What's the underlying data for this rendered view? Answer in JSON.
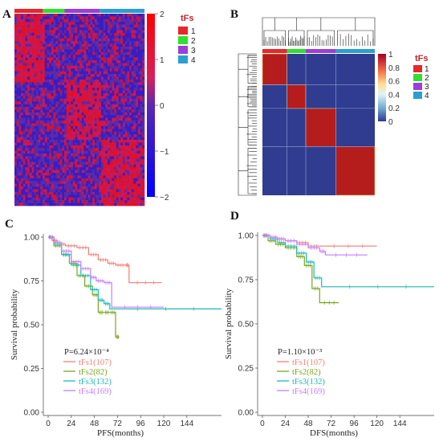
{
  "figure": {
    "panels": {
      "A": "A",
      "B": "B",
      "C": "C",
      "D": "D"
    },
    "groups": [
      {
        "label": "1",
        "color": "#e8272a",
        "weight": 107
      },
      {
        "label": "2",
        "color": "#2fe02f",
        "weight": 82
      },
      {
        "label": "3",
        "color": "#9b3fd6",
        "weight": 132
      },
      {
        "label": "4",
        "color": "#2a9fd2",
        "weight": 169
      }
    ],
    "legend_title": "tFs"
  },
  "chart_data": [
    {
      "panel": "A",
      "type": "heatmap",
      "colorbar": {
        "ticks": [
          "2",
          "1",
          "0",
          "−1",
          "−2"
        ],
        "tick_values": [
          2,
          1,
          0,
          -1,
          -2
        ],
        "colors": [
          "#0000ff",
          "#6a5acd",
          "#ffffff",
          "#ff0000"
        ]
      },
      "legend": {
        "title": "tFs",
        "entries": [
          "1",
          "2",
          "3",
          "4"
        ]
      }
    },
    {
      "panel": "B",
      "type": "heatmap",
      "colorbar": {
        "ticks": [
          "1",
          "0.8",
          "0.6",
          "0.4",
          "0.2",
          "0"
        ],
        "tick_values": [
          1,
          0.8,
          0.6,
          0.4,
          0.2,
          0
        ]
      },
      "legend": {
        "title": "tFs",
        "entries": [
          "1",
          "2",
          "3",
          "4"
        ]
      }
    },
    {
      "panel": "C",
      "type": "line",
      "xlabel": "PFS(months)",
      "ylabel": "Survival probability",
      "xlim": [
        -5,
        180
      ],
      "ylim": [
        0,
        1.0
      ],
      "xticks": [
        0,
        24,
        48,
        72,
        96,
        120,
        144
      ],
      "xtick_labels": [
        "0",
        "24",
        "48",
        "72",
        "96",
        "120",
        "144"
      ],
      "yticks": [
        0,
        0.25,
        0.5,
        0.75,
        1.0
      ],
      "ytick_labels": [
        "0.00",
        "0.25",
        "0.50",
        "0.75",
        "1.00"
      ],
      "pvalue": "P=6.24×10⁻⁴",
      "series": [
        {
          "name": "tFs1(107)",
          "color": "#f07f75",
          "x": [
            0,
            4,
            10,
            18,
            30,
            42,
            52,
            62,
            70,
            80,
            84,
            118
          ],
          "y": [
            1.0,
            0.98,
            0.96,
            0.95,
            0.94,
            0.9,
            0.87,
            0.85,
            0.84,
            0.84,
            0.74,
            0.74
          ]
        },
        {
          "name": "tFs2(82)",
          "color": "#7aa61b",
          "x": [
            0,
            6,
            14,
            22,
            30,
            38,
            46,
            52,
            58,
            64,
            70,
            74
          ],
          "y": [
            1.0,
            0.95,
            0.9,
            0.85,
            0.78,
            0.72,
            0.67,
            0.57,
            0.57,
            0.57,
            0.43,
            0.43
          ]
        },
        {
          "name": "tFs3(132)",
          "color": "#1bb8b8",
          "x": [
            0,
            6,
            14,
            24,
            34,
            44,
            52,
            58,
            64,
            180
          ],
          "y": [
            1.0,
            0.96,
            0.9,
            0.84,
            0.78,
            0.7,
            0.64,
            0.62,
            0.59,
            0.59
          ]
        },
        {
          "name": "tFs4(169)",
          "color": "#c77cff",
          "x": [
            0,
            6,
            14,
            24,
            34,
            44,
            50,
            58,
            66,
            120
          ],
          "y": [
            1.0,
            0.97,
            0.92,
            0.86,
            0.82,
            0.77,
            0.75,
            0.74,
            0.6,
            0.6
          ]
        }
      ]
    },
    {
      "panel": "D",
      "type": "line",
      "xlabel": "DFS(months)",
      "ylabel": "Survival probability",
      "xlim": [
        -5,
        180
      ],
      "ylim": [
        0,
        1.0
      ],
      "xticks": [
        0,
        24,
        48,
        72,
        96,
        120,
        144
      ],
      "xtick_labels": [
        "0",
        "24",
        "48",
        "72",
        "96",
        "120",
        "144"
      ],
      "yticks": [
        0,
        0.25,
        0.5,
        0.75,
        1.0
      ],
      "ytick_labels": [
        "0.00",
        "0.25",
        "0.50",
        "0.75",
        "1.00"
      ],
      "pvalue": "P=1.10×10⁻³",
      "series": [
        {
          "name": "tFs1(107)",
          "color": "#f07f75",
          "x": [
            0,
            8,
            16,
            24,
            36,
            48,
            60,
            120
          ],
          "y": [
            1.0,
            0.99,
            0.98,
            0.97,
            0.96,
            0.94,
            0.94,
            0.94
          ]
        },
        {
          "name": "tFs2(82)",
          "color": "#7aa61b",
          "x": [
            0,
            6,
            14,
            24,
            36,
            44,
            52,
            60,
            80
          ],
          "y": [
            1.0,
            0.97,
            0.95,
            0.93,
            0.88,
            0.83,
            0.7,
            0.62,
            0.62
          ]
        },
        {
          "name": "tFs3(132)",
          "color": "#1bb8b8",
          "x": [
            0,
            8,
            16,
            24,
            36,
            46,
            54,
            62,
            180
          ],
          "y": [
            1.0,
            0.98,
            0.96,
            0.94,
            0.9,
            0.85,
            0.76,
            0.71,
            0.71
          ]
        },
        {
          "name": "tFs4(169)",
          "color": "#c77cff",
          "x": [
            0,
            8,
            16,
            24,
            36,
            48,
            60,
            66,
            110
          ],
          "y": [
            1.0,
            0.99,
            0.98,
            0.97,
            0.95,
            0.93,
            0.91,
            0.89,
            0.89
          ]
        }
      ]
    }
  ]
}
